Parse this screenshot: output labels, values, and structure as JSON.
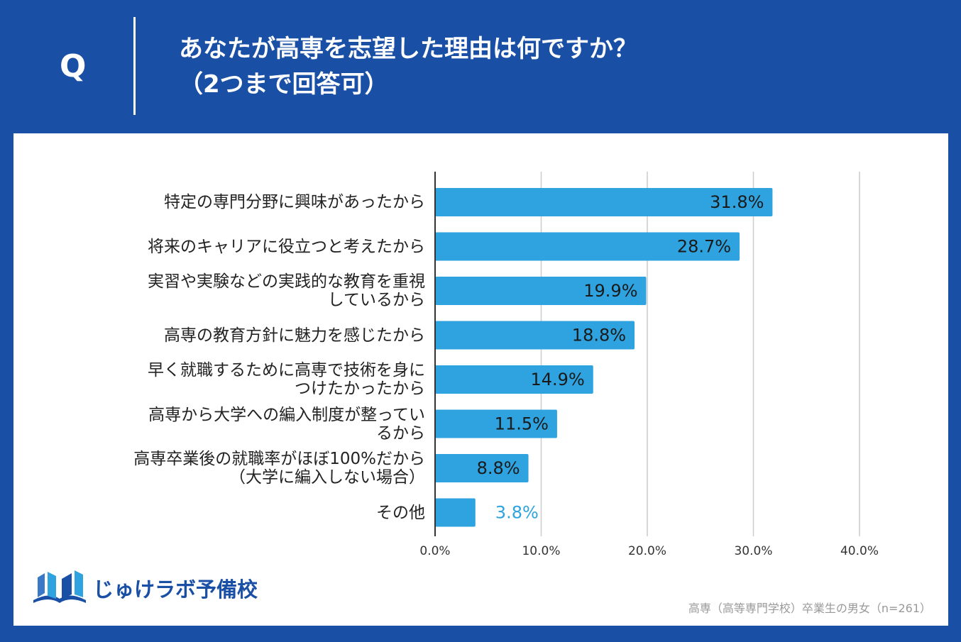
{
  "header": {
    "q_mark": "Q",
    "question_line1": "あなたが高専を志望した理由は何ですか？",
    "question_line2": "（2つまで回答可）"
  },
  "chart_data": {
    "type": "bar",
    "orientation": "horizontal",
    "categories": [
      [
        "特定の専門分野に興味があったから"
      ],
      [
        "将来のキャリアに役立つと考えたから"
      ],
      [
        "実習や実験などの実践的な教育を重視",
        "しているから"
      ],
      [
        "高専の教育方針に魅力を感じたから"
      ],
      [
        "早く就職するために高専で技術を身に",
        "つけたかったから"
      ],
      [
        "高専から大学への編入制度が整ってい",
        "るから"
      ],
      [
        "高専卒業後の就職率がほぼ100%だから",
        "（大学に編入しない場合）"
      ],
      [
        "その他"
      ]
    ],
    "values": [
      31.8,
      28.7,
      19.9,
      18.8,
      14.9,
      11.5,
      8.8,
      3.8
    ],
    "value_labels": [
      "31.8%",
      "28.7%",
      "19.9%",
      "18.8%",
      "14.9%",
      "11.5%",
      "8.8%",
      "3.8%"
    ],
    "xlim": [
      0,
      40
    ],
    "xticks": [
      0,
      10,
      20,
      30,
      40
    ],
    "xtick_labels": [
      "0.0%",
      "10.0%",
      "20.0%",
      "30.0%",
      "40.0%"
    ],
    "grid": true,
    "bar_color": "#2ea3e0",
    "label_color_inside": "#1a1a1a",
    "label_color_outside": "#2ea3e0"
  },
  "footer": {
    "logo_text": "じゅけラボ予備校",
    "source": "高専（高等専門学校）卒業生の男女（n=261）"
  },
  "colors": {
    "background": "#1a4fa6",
    "panel": "#ffffff",
    "brand": "#1a4fa6",
    "accent": "#2ea3e0"
  }
}
